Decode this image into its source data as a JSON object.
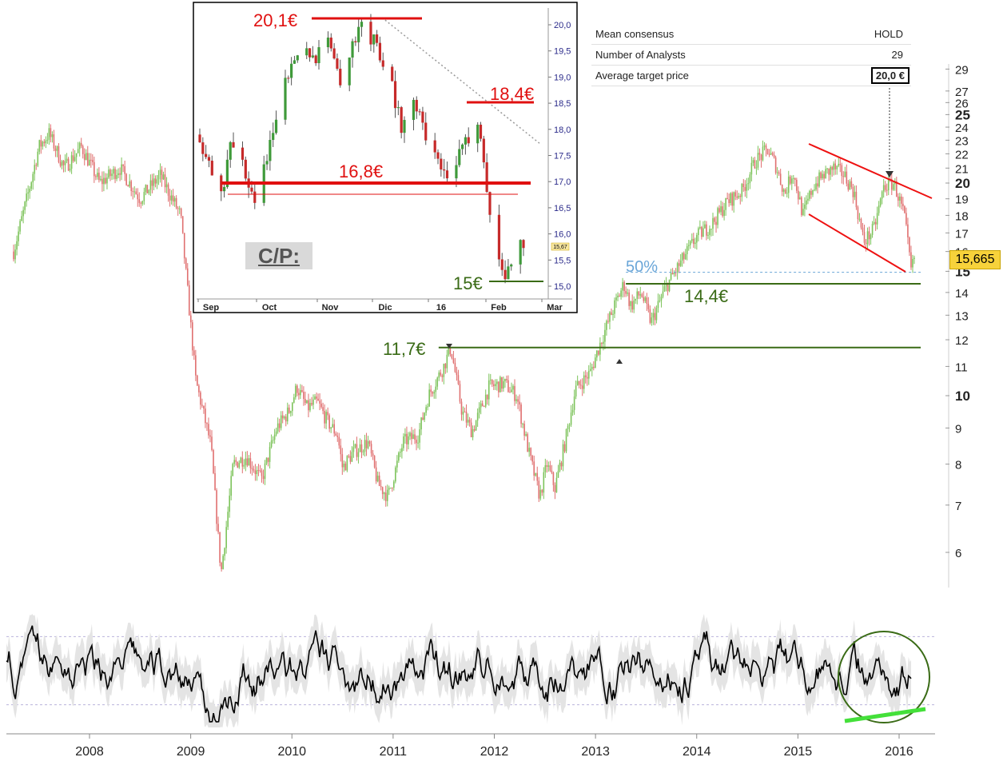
{
  "chart_data": [
    {
      "type": "candlestick",
      "name": "main",
      "x_range": [
        2007.25,
        2016.15
      ],
      "y_scale": "log",
      "ylim": [
        5.5,
        29.5
      ],
      "y_ticks": [
        6,
        7,
        8,
        9,
        10,
        11,
        12,
        13,
        14,
        15,
        16,
        17,
        18,
        19,
        20,
        21,
        22,
        23,
        24,
        25,
        26,
        27,
        29
      ],
      "y_ticks_bold": [
        10,
        15,
        20,
        25
      ],
      "x_ticks": [
        "2008",
        "2009",
        "2010",
        "2011",
        "2012",
        "2013",
        "2014",
        "2015",
        "2016"
      ],
      "x_tick_values": [
        2008,
        2009,
        2010,
        2011,
        2012,
        2013,
        2014,
        2015,
        2016
      ],
      "last_price": "15,665",
      "price_path": [
        [
          2007.25,
          16.0
        ],
        [
          2007.4,
          19.5
        ],
        [
          2007.5,
          22.5
        ],
        [
          2007.6,
          23.5
        ],
        [
          2007.75,
          21.0
        ],
        [
          2007.92,
          22.5
        ],
        [
          2008.1,
          20.0
        ],
        [
          2008.3,
          21.0
        ],
        [
          2008.5,
          19.0
        ],
        [
          2008.7,
          20.5
        ],
        [
          2008.9,
          18.0
        ],
        [
          2009.05,
          10.5
        ],
        [
          2009.2,
          8.5
        ],
        [
          2009.3,
          5.6
        ],
        [
          2009.42,
          8.0
        ],
        [
          2009.55,
          8.2
        ],
        [
          2009.7,
          7.6
        ],
        [
          2009.85,
          9.0
        ],
        [
          2009.97,
          9.5
        ],
        [
          2010.05,
          10.3
        ],
        [
          2010.15,
          9.6
        ],
        [
          2010.25,
          9.8
        ],
        [
          2010.35,
          9.2
        ],
        [
          2010.45,
          8.8
        ],
        [
          2010.5,
          7.9
        ],
        [
          2010.6,
          8.3
        ],
        [
          2010.75,
          8.6
        ],
        [
          2010.85,
          7.5
        ],
        [
          2010.95,
          7.2
        ],
        [
          2011.1,
          8.6
        ],
        [
          2011.25,
          8.8
        ],
        [
          2011.35,
          10.0
        ],
        [
          2011.5,
          11.0
        ],
        [
          2011.57,
          11.7
        ],
        [
          2011.68,
          9.5
        ],
        [
          2011.78,
          8.9
        ],
        [
          2011.95,
          10.3
        ],
        [
          2012.1,
          10.4
        ],
        [
          2012.22,
          10.0
        ],
        [
          2012.35,
          8.2
        ],
        [
          2012.45,
          7.2
        ],
        [
          2012.52,
          8.0
        ],
        [
          2012.6,
          7.4
        ],
        [
          2012.7,
          8.6
        ],
        [
          2012.8,
          10.2
        ],
        [
          2012.95,
          10.8
        ],
        [
          2013.05,
          11.9
        ],
        [
          2013.15,
          13.0
        ],
        [
          2013.28,
          14.4
        ],
        [
          2013.35,
          13.4
        ],
        [
          2013.45,
          14.0
        ],
        [
          2013.55,
          12.7
        ],
        [
          2013.7,
          14.3
        ],
        [
          2013.85,
          15.5
        ],
        [
          2014.0,
          16.8
        ],
        [
          2014.15,
          17.5
        ],
        [
          2014.3,
          18.8
        ],
        [
          2014.45,
          19.5
        ],
        [
          2014.58,
          21.5
        ],
        [
          2014.7,
          22.3
        ],
        [
          2014.78,
          21.2
        ],
        [
          2014.87,
          19.3
        ],
        [
          2014.95,
          20.8
        ],
        [
          2015.05,
          18.0
        ],
        [
          2015.15,
          19.8
        ],
        [
          2015.25,
          20.5
        ],
        [
          2015.35,
          21.0
        ],
        [
          2015.45,
          20.6
        ],
        [
          2015.55,
          19.5
        ],
        [
          2015.65,
          16.5
        ],
        [
          2015.75,
          17.2
        ],
        [
          2015.85,
          19.8
        ],
        [
          2015.95,
          20.0
        ],
        [
          2016.05,
          18.0
        ],
        [
          2016.12,
          15.0
        ],
        [
          2016.15,
          15.665
        ]
      ],
      "levels": [
        {
          "label": "14,4€",
          "y": 14.4,
          "x_from": 2013.3,
          "x_to": 2016.2,
          "color": "#3a6b16"
        },
        {
          "label": "11,7€",
          "y": 11.7,
          "x_from": 2011.45,
          "x_to": 2016.2,
          "color": "#3a6b16"
        },
        {
          "label": "50%",
          "y": 14.95,
          "x_from": 2013.3,
          "x_to": 2016.2,
          "color": "#6aa6d8",
          "style": "dashed"
        }
      ],
      "channel": {
        "upper": [
          [
            2014.95,
            22.8
          ],
          [
            2016.32,
            19.0
          ]
        ],
        "lower": [
          [
            2014.95,
            18.4
          ],
          [
            2016.1,
            15.2
          ]
        ],
        "color": "#ee1111"
      }
    },
    {
      "type": "candlestick",
      "name": "inset",
      "title": "C/P:",
      "ylim": [
        14.8,
        20.2
      ],
      "y_ticks": [
        "20,0",
        "19,5",
        "19,0",
        "18,5",
        "18,0",
        "17,5",
        "17,0",
        "16,5",
        "16,0",
        "15,5",
        "15,0"
      ],
      "y_tick_values": [
        20.0,
        19.5,
        19.0,
        18.5,
        18.0,
        17.5,
        17.0,
        16.5,
        16.0,
        15.5,
        15.0
      ],
      "x_ticks": [
        "Sep",
        "Oct",
        "Nov",
        "Dic",
        "16",
        "Feb",
        "Mar"
      ],
      "price_path": [
        [
          0,
          17.9
        ],
        [
          4,
          17.1
        ],
        [
          8,
          16.8
        ],
        [
          10,
          17.8
        ],
        [
          14,
          17.3
        ],
        [
          18,
          16.7
        ],
        [
          22,
          17.5
        ],
        [
          26,
          18.5
        ],
        [
          30,
          19.2
        ],
        [
          34,
          19.7
        ],
        [
          38,
          19.4
        ],
        [
          42,
          19.8
        ],
        [
          46,
          19.0
        ],
        [
          50,
          19.6
        ],
        [
          54,
          20.1
        ],
        [
          58,
          19.5
        ],
        [
          62,
          19.0
        ],
        [
          66,
          18.1
        ],
        [
          70,
          18.5
        ],
        [
          74,
          17.9
        ],
        [
          78,
          17.4
        ],
        [
          82,
          17.0
        ],
        [
          86,
          17.6
        ],
        [
          90,
          18.0
        ],
        [
          92,
          17.9
        ],
        [
          94,
          16.7
        ],
        [
          96,
          16.3
        ],
        [
          98,
          15.6
        ],
        [
          100,
          15.2
        ],
        [
          102,
          15.4
        ],
        [
          104,
          15.8
        ],
        [
          106,
          15.7
        ]
      ],
      "x_len": 120,
      "levels": [
        {
          "label": "20,1€",
          "y": 20.1,
          "color": "#e01010"
        },
        {
          "label": "18,4€",
          "y": 18.35,
          "color": "#e01010"
        },
        {
          "label": "16,8€",
          "y": 16.8,
          "color": "#e01010"
        },
        {
          "label": "15€",
          "y": 15.08,
          "color": "#3a6b16"
        }
      ],
      "small_badge": "15,67"
    },
    {
      "type": "line",
      "name": "oscillator",
      "x_range": [
        2007.25,
        2016.15
      ],
      "ylim": [
        0,
        100
      ],
      "bands": [
        80,
        20
      ],
      "note": "momentum oscillator with shaded envelope"
    }
  ],
  "consensus": {
    "rows": [
      {
        "label": "Mean consensus",
        "value": "HOLD"
      },
      {
        "label": "Number of Analysts",
        "value": "29"
      },
      {
        "label": "Average target price",
        "value": "20,0 €"
      }
    ]
  },
  "colors": {
    "up": "#7dc35b",
    "down": "#e07070",
    "support": "#3a6b16",
    "resistance": "#e01010",
    "accent": "#f7d23b"
  }
}
